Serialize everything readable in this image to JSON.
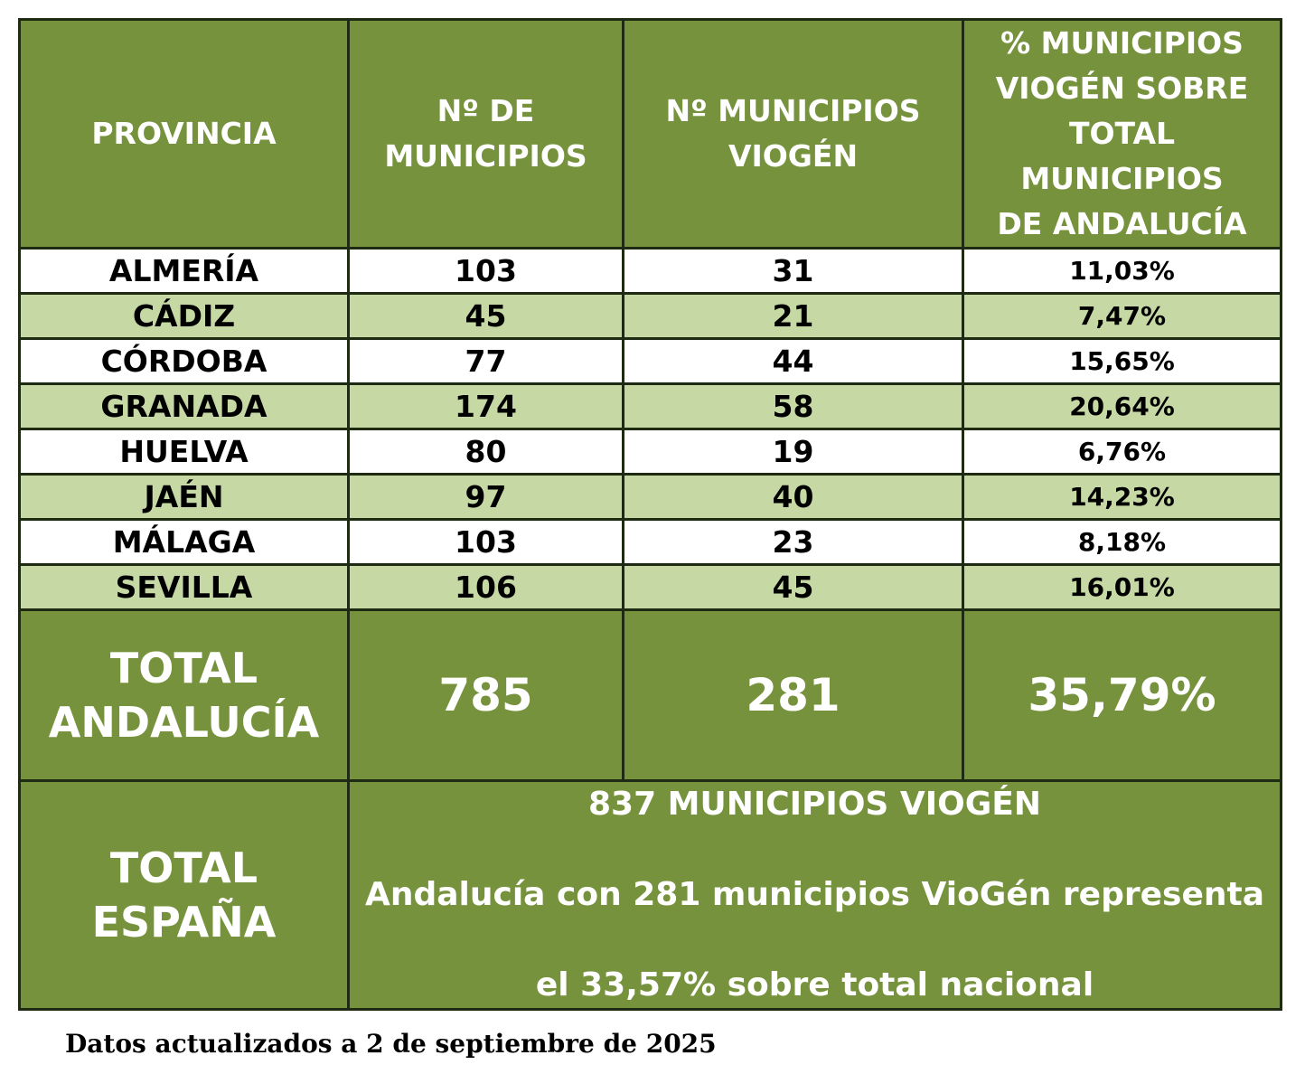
{
  "header": {
    "provincia": "PROVINCIA",
    "n_municipios_l1": "Nº DE",
    "n_municipios_l2": "MUNICIPIOS",
    "n_viogen_l1": "Nº MUNICIPIOS",
    "n_viogen_l2": "VIOGÉN",
    "pct_l1": "% MUNICIPIOS",
    "pct_l2": "VIOGÉN SOBRE",
    "pct_l3": "TOTAL",
    "pct_l4": "MUNICIPIOS",
    "pct_l5": "DE ANDALUCÍA"
  },
  "rows": [
    {
      "provincia": "ALMERÍA",
      "municipios": "103",
      "viogen": "31",
      "pct": "11,03%"
    },
    {
      "provincia": "CÁDIZ",
      "municipios": "45",
      "viogen": "21",
      "pct": "7,47%"
    },
    {
      "provincia": "CÓRDOBA",
      "municipios": "77",
      "viogen": "44",
      "pct": "15,65%"
    },
    {
      "provincia": "GRANADA",
      "municipios": "174",
      "viogen": "58",
      "pct": "20,64%"
    },
    {
      "provincia": "HUELVA",
      "municipios": "80",
      "viogen": "19",
      "pct": "6,76%"
    },
    {
      "provincia": "JAÉN",
      "municipios": "97",
      "viogen": "40",
      "pct": "14,23%"
    },
    {
      "provincia": "MÁLAGA",
      "municipios": "103",
      "viogen": "23",
      "pct": "8,18%"
    },
    {
      "provincia": "SEVILLA",
      "municipios": "106",
      "viogen": "45",
      "pct": "16,01%"
    }
  ],
  "total_andalucia": {
    "label_l1": "TOTAL",
    "label_l2": "ANDALUCÍA",
    "municipios": "785",
    "viogen": "281",
    "pct": "35,79%"
  },
  "total_espana": {
    "label_l1": "TOTAL",
    "label_l2": "ESPAÑA",
    "line1": "837 MUNICIPIOS VIOGÉN",
    "line2": "Andalucía con 281 municipios VioGén representa",
    "line3": "el 33,57% sobre total nacional"
  },
  "footnote": "Datos actualizados a 2 de septiembre de 2025",
  "colors": {
    "header_green": "#76923c",
    "light_green": "#c6d9a5",
    "white": "#ffffff"
  }
}
